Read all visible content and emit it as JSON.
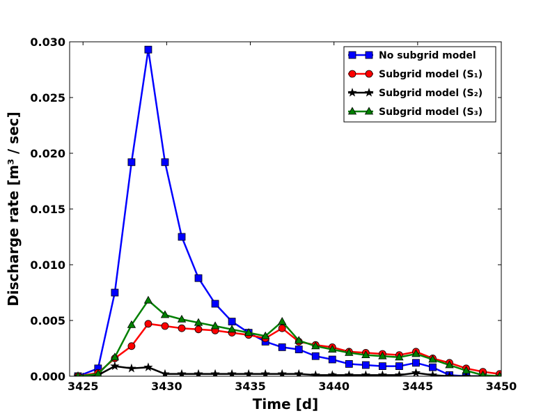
{
  "chart_data": {
    "type": "line",
    "xlabel": "Time [d]",
    "ylabel": "Discharge rate [m³ / sec]",
    "xlim": [
      3424.2,
      3450
    ],
    "ylim": [
      0,
      0.03
    ],
    "xticks": [
      "3425",
      "3430",
      "3435",
      "3440",
      "3445",
      "3450"
    ],
    "xtick_values": [
      3425,
      3430,
      3435,
      3440,
      3445,
      3450
    ],
    "yticks": [
      "0.000",
      "0.005",
      "0.010",
      "0.015",
      "0.020",
      "0.025",
      "0.030"
    ],
    "ytick_values": [
      0,
      0.005,
      0.01,
      0.015,
      0.02,
      0.025,
      0.03
    ],
    "legend_position": "top-right",
    "series": [
      {
        "name": "No subgrid model",
        "color": "#0000ff",
        "marker": "square",
        "points": [
          [
            3424.7,
            0.0
          ],
          [
            3425.9,
            0.0007
          ],
          [
            3426.9,
            0.0075
          ],
          [
            3427.9,
            0.0192
          ],
          [
            3428.9,
            0.0293
          ],
          [
            3429.9,
            0.0192
          ],
          [
            3430.9,
            0.0125
          ],
          [
            3431.9,
            0.0088
          ],
          [
            3432.9,
            0.0065
          ],
          [
            3433.9,
            0.0049
          ],
          [
            3434.9,
            0.0039
          ],
          [
            3435.9,
            0.0031
          ],
          [
            3436.9,
            0.0026
          ],
          [
            3437.9,
            0.0024
          ],
          [
            3438.9,
            0.0018
          ],
          [
            3439.9,
            0.0015
          ],
          [
            3440.9,
            0.0011
          ],
          [
            3441.9,
            0.001
          ],
          [
            3442.9,
            0.0009
          ],
          [
            3443.9,
            0.0009
          ],
          [
            3444.9,
            0.0012
          ],
          [
            3445.9,
            0.0008
          ],
          [
            3446.9,
            0.0001
          ],
          [
            3447.9,
            0.0
          ],
          [
            3448.9,
            0.0
          ],
          [
            3449.9,
            0.0
          ]
        ]
      },
      {
        "name": "Subgrid model (S₁)",
        "color": "#ff0000",
        "marker": "circle",
        "points": [
          [
            3424.7,
            0.0
          ],
          [
            3425.9,
            0.0003
          ],
          [
            3426.9,
            0.0016
          ],
          [
            3427.9,
            0.0027
          ],
          [
            3428.9,
            0.0047
          ],
          [
            3429.9,
            0.0045
          ],
          [
            3430.9,
            0.0043
          ],
          [
            3431.9,
            0.0042
          ],
          [
            3432.9,
            0.0041
          ],
          [
            3433.9,
            0.0039
          ],
          [
            3434.9,
            0.0037
          ],
          [
            3435.9,
            0.0034
          ],
          [
            3436.9,
            0.0043
          ],
          [
            3437.9,
            0.0031
          ],
          [
            3438.9,
            0.0028
          ],
          [
            3439.9,
            0.0026
          ],
          [
            3440.9,
            0.0022
          ],
          [
            3441.9,
            0.0021
          ],
          [
            3442.9,
            0.002
          ],
          [
            3443.9,
            0.0019
          ],
          [
            3444.9,
            0.0022
          ],
          [
            3445.9,
            0.0016
          ],
          [
            3446.9,
            0.0012
          ],
          [
            3447.9,
            0.0007
          ],
          [
            3448.9,
            0.0004
          ],
          [
            3449.9,
            0.0002
          ]
        ]
      },
      {
        "name": "Subgrid model (S₂)",
        "color": "#000000",
        "marker": "star",
        "points": [
          [
            3424.7,
            0.0
          ],
          [
            3425.9,
            0.0001
          ],
          [
            3426.9,
            0.0009
          ],
          [
            3427.9,
            0.0007
          ],
          [
            3428.9,
            0.0008
          ],
          [
            3429.9,
            0.0002
          ],
          [
            3430.9,
            0.0002
          ],
          [
            3431.9,
            0.0002
          ],
          [
            3432.9,
            0.0002
          ],
          [
            3433.9,
            0.0002
          ],
          [
            3434.9,
            0.0002
          ],
          [
            3435.9,
            0.0002
          ],
          [
            3436.9,
            0.0002
          ],
          [
            3437.9,
            0.0002
          ],
          [
            3438.9,
            0.0001
          ],
          [
            3439.9,
            0.0001
          ],
          [
            3440.9,
            0.0001
          ],
          [
            3441.9,
            0.0001
          ],
          [
            3442.9,
            0.0001
          ],
          [
            3443.9,
            0.0001
          ],
          [
            3444.9,
            0.0003
          ],
          [
            3445.9,
            0.0001
          ],
          [
            3446.9,
            0.0
          ],
          [
            3447.9,
            0.0
          ],
          [
            3448.9,
            0.0
          ],
          [
            3449.9,
            0.0
          ]
        ]
      },
      {
        "name": "Subgrid model (S₃)",
        "color": "#008000",
        "marker": "triangle",
        "points": [
          [
            3424.7,
            0.0
          ],
          [
            3425.9,
            0.0002
          ],
          [
            3426.9,
            0.0017
          ],
          [
            3427.9,
            0.0046
          ],
          [
            3428.9,
            0.0068
          ],
          [
            3429.9,
            0.0055
          ],
          [
            3430.9,
            0.0051
          ],
          [
            3431.9,
            0.0048
          ],
          [
            3432.9,
            0.0045
          ],
          [
            3433.9,
            0.0042
          ],
          [
            3434.9,
            0.0039
          ],
          [
            3435.9,
            0.0036
          ],
          [
            3436.9,
            0.0049
          ],
          [
            3437.9,
            0.0032
          ],
          [
            3438.9,
            0.0027
          ],
          [
            3439.9,
            0.0024
          ],
          [
            3440.9,
            0.0021
          ],
          [
            3441.9,
            0.0019
          ],
          [
            3442.9,
            0.0018
          ],
          [
            3443.9,
            0.0017
          ],
          [
            3444.9,
            0.002
          ],
          [
            3445.9,
            0.0015
          ],
          [
            3446.9,
            0.001
          ],
          [
            3447.9,
            0.0005
          ],
          [
            3448.9,
            0.0001
          ],
          [
            3449.9,
            0.0
          ]
        ]
      }
    ]
  }
}
